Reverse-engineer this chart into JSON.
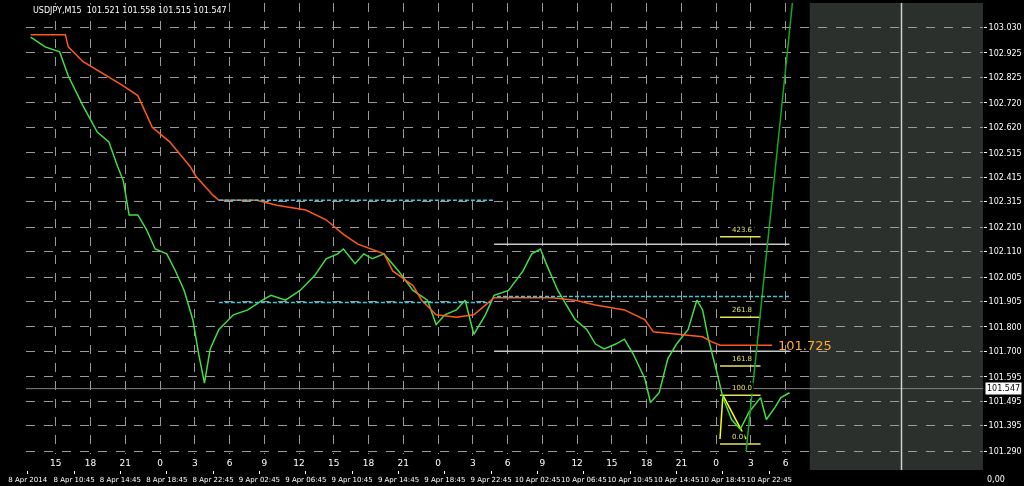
{
  "chart_data": {
    "type": "line",
    "title": "USDJPY,M15  101.521 101.558 101.515 101.547",
    "xlim": [
      "2014-04-08T06:36",
      "2014-04-11T17:12"
    ],
    "ylim": [
      101.28,
      103.13
    ],
    "yticks": [
      {
        "value": 103.03,
        "label": "103.030"
      },
      {
        "value": 102.925,
        "label": "102.925"
      },
      {
        "value": 102.825,
        "label": "102.825"
      },
      {
        "value": 102.72,
        "label": "102.720"
      },
      {
        "value": 102.62,
        "label": "102.620"
      },
      {
        "value": 102.515,
        "label": "102.515"
      },
      {
        "value": 102.415,
        "label": "102.415"
      },
      {
        "value": 102.315,
        "label": "102.315"
      },
      {
        "value": 102.21,
        "label": "102.210"
      },
      {
        "value": 102.11,
        "label": "102.110"
      },
      {
        "value": 102.005,
        "label": "102.005"
      },
      {
        "value": 101.905,
        "label": "101.905"
      },
      {
        "value": 101.8,
        "label": "101.800"
      },
      {
        "value": 101.7,
        "label": "101.700"
      },
      {
        "value": 101.595,
        "label": "101.595"
      },
      {
        "value": 101.495,
        "label": "101.495"
      },
      {
        "value": 101.395,
        "label": "101.395"
      },
      {
        "value": 101.29,
        "label": "101.290"
      }
    ],
    "xticks": [
      {
        "value": "2014-04-08T06:45",
        "label": "8 Apr 2014"
      },
      {
        "value": "2014-04-08T10:45",
        "label": "8 Apr 10:45"
      },
      {
        "value": "2014-04-08T14:45",
        "label": "8 Apr 14:45"
      },
      {
        "value": "2014-04-08T18:45",
        "label": "8 Apr 18:45"
      },
      {
        "value": "2014-04-08T22:45",
        "label": "8 Apr 22:45"
      },
      {
        "value": "2014-04-09T02:45",
        "label": "9 Apr 02:45"
      },
      {
        "value": "2014-04-09T06:45",
        "label": "9 Apr 06:45"
      },
      {
        "value": "2014-04-09T10:45",
        "label": "9 Apr 10:45"
      },
      {
        "value": "2014-04-09T14:45",
        "label": "9 Apr 14:45"
      },
      {
        "value": "2014-04-09T18:45",
        "label": "9 Apr 18:45"
      },
      {
        "value": "2014-04-09T22:45",
        "label": "9 Apr 22:45"
      },
      {
        "value": "2014-04-10T02:45",
        "label": "10 Apr 02:45"
      },
      {
        "value": "2014-04-10T06:45",
        "label": "10 Apr 06:45"
      },
      {
        "value": "2014-04-10T10:45",
        "label": "10 Apr 10:45"
      },
      {
        "value": "2014-04-10T14:45",
        "label": "10 Apr 14:45"
      },
      {
        "value": "2014-04-10T18:45",
        "label": "10 Apr 18:45"
      },
      {
        "value": "2014-04-10T22:45",
        "label": "10 Apr 22:45"
      }
    ],
    "x2lim": [
      "2014-04-08T12:26",
      "2014-04-11T23:02"
    ],
    "x2ticks": [
      {
        "value": "2014-04-08T15:00",
        "label": "15"
      },
      {
        "value": "2014-04-08T18:00",
        "label": "18"
      },
      {
        "value": "2014-04-08T21:00",
        "label": "21"
      },
      {
        "value": "2014-04-09T00:00",
        "label": "0"
      },
      {
        "value": "2014-04-09T03:00",
        "label": "3"
      },
      {
        "value": "2014-04-09T06:00",
        "label": "6"
      },
      {
        "value": "2014-04-09T09:00",
        "label": "9"
      },
      {
        "value": "2014-04-09T12:00",
        "label": "12"
      },
      {
        "value": "2014-04-09T15:00",
        "label": "15"
      },
      {
        "value": "2014-04-09T18:00",
        "label": "18"
      },
      {
        "value": "2014-04-09T21:00",
        "label": "21"
      },
      {
        "value": "2014-04-10T00:00",
        "label": "0"
      },
      {
        "value": "2014-04-10T03:00",
        "label": "3"
      },
      {
        "value": "2014-04-10T06:00",
        "label": "6"
      },
      {
        "value": "2014-04-10T09:00",
        "label": "9"
      },
      {
        "value": "2014-04-10T12:00",
        "label": "12"
      },
      {
        "value": "2014-04-10T15:00",
        "label": "15"
      },
      {
        "value": "2014-04-10T18:00",
        "label": "18"
      },
      {
        "value": "2014-04-10T21:00",
        "label": "21"
      },
      {
        "value": "2014-04-11T00:00",
        "label": "0"
      },
      {
        "value": "2014-04-11T03:00",
        "label": "3"
      },
      {
        "value": "2014-04-11T06:00",
        "label": "6"
      }
    ],
    "grid": true,
    "bands": [
      {
        "axis": "x",
        "from": "2014-04-11T02:15",
        "to": "2014-04-11T17:12",
        "color": "#2b302c"
      }
    ],
    "ref_lines": [
      {
        "axis": "y",
        "value": 101.547,
        "label": "101.547",
        "color": "#808080"
      },
      {
        "axis": "x",
        "value": "2014-04-11T10:10",
        "color": "#d0d0d0"
      }
    ],
    "annotations": [
      {
        "text": "101.725",
        "x": "2014-04-10T23:00",
        "y": 101.725
      },
      {
        "text": "423.6",
        "x": "2014-04-10T18:30",
        "y": 102.17
      },
      {
        "text": "261.8",
        "x": "2014-04-10T18:30",
        "y": 101.84
      },
      {
        "text": "161.8",
        "x": "2014-04-10T18:30",
        "y": 101.64
      },
      {
        "text": "100.0",
        "x": "2014-04-10T18:30",
        "y": 101.52
      },
      {
        "text": "0.0",
        "x": "2014-04-10T18:30",
        "y": 101.32
      },
      "0,00"
    ],
    "series": [
      {
        "color": "#c8c8c8",
        "x": [
          "2014-04-09T23:00",
          "2014-04-11T00:30"
        ],
        "values": [
          102.14,
          102.14
        ]
      },
      {
        "color": "#c8c8c8",
        "x": [
          "2014-04-09T23:00",
          "2014-04-11T00:30"
        ],
        "values": [
          101.7,
          101.7
        ]
      },
      {
        "color": "#40c8d8",
        "line_style": "dashed",
        "x": [
          "2014-04-08T23:15",
          "2014-04-09T23:00"
        ],
        "values": [
          102.32,
          102.32
        ]
      },
      {
        "color": "#40c8d8",
        "line_style": "dashed",
        "x": [
          "2014-04-08T23:15",
          "2014-04-09T22:45",
          null,
          "2014-04-09T23:15",
          "2014-04-11T00:30"
        ],
        "values": [
          101.9,
          101.9,
          null,
          101.925,
          101.925
        ]
      },
      {
        "color": "#e8e060",
        "x": [
          "2014-04-10T18:30",
          "2014-04-10T22:00"
        ],
        "values": [
          102.17,
          102.17
        ]
      },
      {
        "color": "#e8e060",
        "x": [
          "2014-04-10T18:30",
          "2014-04-10T22:00"
        ],
        "values": [
          101.84,
          101.84
        ]
      },
      {
        "color": "#e8e060",
        "x": [
          "2014-04-10T18:30",
          "2014-04-10T22:00"
        ],
        "values": [
          101.64,
          101.64
        ]
      },
      {
        "color": "#e8e060",
        "x": [
          "2014-04-10T18:30",
          "2014-04-10T22:00"
        ],
        "values": [
          101.52,
          101.52
        ]
      },
      {
        "color": "#e8e060",
        "x": [
          "2014-04-10T18:30",
          "2014-04-10T22:00"
        ],
        "values": [
          101.32,
          101.32
        ]
      },
      {
        "color": "#ffff00",
        "x": [
          "2014-04-10T18:30",
          "2014-04-10T18:45",
          "2014-04-10T20:45"
        ],
        "values": [
          101.34,
          101.52,
          101.34
        ]
      },
      {
        "color": "#44dd44",
        "x": [
          "2014-04-08T07:00",
          "2014-04-08T08:15",
          "2014-04-08T09:30",
          "2014-04-08T10:15",
          "2014-04-08T11:30",
          "2014-04-08T12:45",
          "2014-04-08T13:45",
          "2014-04-08T14:30",
          "2014-04-08T15:00",
          "2014-04-08T15:30",
          "2014-04-08T16:15",
          "2014-04-08T17:00",
          "2014-04-08T17:45",
          "2014-04-08T18:45",
          "2014-04-08T19:30",
          "2014-04-08T20:15",
          "2014-04-08T21:00",
          "2014-04-08T21:30",
          "2014-04-08T22:00",
          "2014-04-08T22:30",
          "2014-04-08T23:15",
          "2014-04-09T00:30",
          "2014-04-09T01:45",
          "2014-04-09T03:00",
          "2014-04-09T03:45",
          "2014-04-09T05:00",
          "2014-04-09T06:15",
          "2014-04-09T07:30",
          "2014-04-09T08:30",
          "2014-04-09T09:30",
          "2014-04-09T10:00",
          "2014-04-09T11:00",
          "2014-04-09T11:45",
          "2014-04-09T12:30",
          "2014-04-09T13:30",
          "2014-04-09T14:45",
          "2014-04-09T16:00",
          "2014-04-09T17:15",
          "2014-04-09T18:00",
          "2014-04-09T18:45",
          "2014-04-09T19:45",
          "2014-04-09T20:30",
          "2014-04-09T21:15",
          "2014-04-09T22:15",
          "2014-04-09T23:00",
          "2014-04-10T00:15",
          "2014-04-10T01:30",
          "2014-04-10T02:15",
          "2014-04-10T03:00",
          "2014-04-10T03:30",
          "2014-04-10T04:30",
          "2014-04-10T05:15",
          "2014-04-10T06:00",
          "2014-04-10T07:00",
          "2014-04-10T07:45",
          "2014-04-10T08:30",
          "2014-04-10T09:30",
          "2014-04-10T10:15",
          "2014-04-10T11:00",
          "2014-04-10T12:00",
          "2014-04-10T12:30",
          "2014-04-10T13:15",
          "2014-04-10T14:00",
          "2014-04-10T14:45",
          "2014-04-10T15:45",
          "2014-04-10T16:30",
          "2014-04-10T17:00",
          "2014-04-10T17:30",
          "2014-04-10T18:15",
          "2014-04-10T18:45",
          "2014-04-10T19:30",
          "2014-04-10T20:15",
          "2014-04-10T21:00",
          "2014-04-10T22:00",
          "2014-04-10T22:30",
          "2014-04-10T23:15",
          "2014-04-10T23:45",
          "2014-04-11T00:30"
        ],
        "values": [
          102.99,
          102.95,
          102.93,
          102.83,
          102.71,
          102.6,
          102.56,
          102.46,
          102.4,
          102.26,
          102.26,
          102.2,
          102.12,
          102.1,
          102.03,
          101.95,
          101.83,
          101.69,
          101.57,
          101.71,
          101.79,
          101.85,
          101.87,
          101.91,
          101.93,
          101.91,
          101.95,
          102.01,
          102.08,
          102.1,
          102.12,
          102.06,
          102.1,
          102.08,
          102.1,
          102.03,
          101.95,
          101.91,
          101.81,
          101.85,
          101.87,
          101.91,
          101.77,
          101.85,
          101.93,
          101.95,
          102.03,
          102.1,
          102.12,
          102.06,
          101.95,
          101.89,
          101.83,
          101.79,
          101.73,
          101.71,
          101.73,
          101.75,
          101.69,
          101.59,
          101.49,
          101.53,
          101.67,
          101.73,
          101.79,
          101.91,
          101.87,
          101.75,
          101.61,
          101.51,
          101.42,
          101.38,
          101.45,
          101.51,
          101.42,
          101.47,
          101.51,
          101.53
        ]
      },
      {
        "color": "#ff5a1a",
        "x": [
          "2014-04-08T07:00",
          "2014-04-08T10:00",
          "2014-04-08T10:15",
          "2014-04-08T11:30",
          "2014-04-08T15:00",
          "2014-04-08T16:15",
          "2014-04-08T17:30",
          "2014-04-08T19:00",
          "2014-04-08T20:45",
          "2014-04-08T21:15",
          "2014-04-08T22:45",
          "2014-04-08T23:15",
          "2014-04-09T02:30",
          "2014-04-09T04:15",
          "2014-04-09T06:45",
          "2014-04-09T08:30",
          "2014-04-09T10:00",
          "2014-04-09T11:15",
          "2014-04-09T13:30",
          "2014-04-09T14:15",
          "2014-04-09T16:00",
          "2014-04-09T16:45",
          "2014-04-09T18:00",
          "2014-04-09T19:45",
          "2014-04-09T21:15",
          "2014-04-09T22:15",
          "2014-04-09T23:00",
          "2014-04-10T04:00",
          "2014-04-10T06:00",
          "2014-04-10T07:45",
          "2014-04-10T10:15",
          "2014-04-10T12:00",
          "2014-04-10T12:45",
          "2014-04-10T17:00",
          "2014-04-10T17:45",
          "2014-04-10T18:30",
          "2014-04-10T23:00"
        ],
        "values": [
          103.0,
          103.0,
          102.95,
          102.89,
          102.79,
          102.75,
          102.62,
          102.56,
          102.46,
          102.42,
          102.34,
          102.32,
          102.32,
          102.3,
          102.28,
          102.24,
          102.18,
          102.14,
          102.1,
          102.03,
          101.97,
          101.91,
          101.85,
          101.84,
          101.85,
          101.89,
          101.92,
          101.92,
          101.91,
          101.89,
          101.87,
          101.83,
          101.78,
          101.76,
          101.74,
          101.725,
          101.725
        ]
      },
      {
        "color": "#11aa22",
        "x": [
          "2014-04-10T20:45",
          "2014-04-11T00:45"
        ],
        "values": [
          101.29,
          103.13
        ]
      }
    ]
  }
}
